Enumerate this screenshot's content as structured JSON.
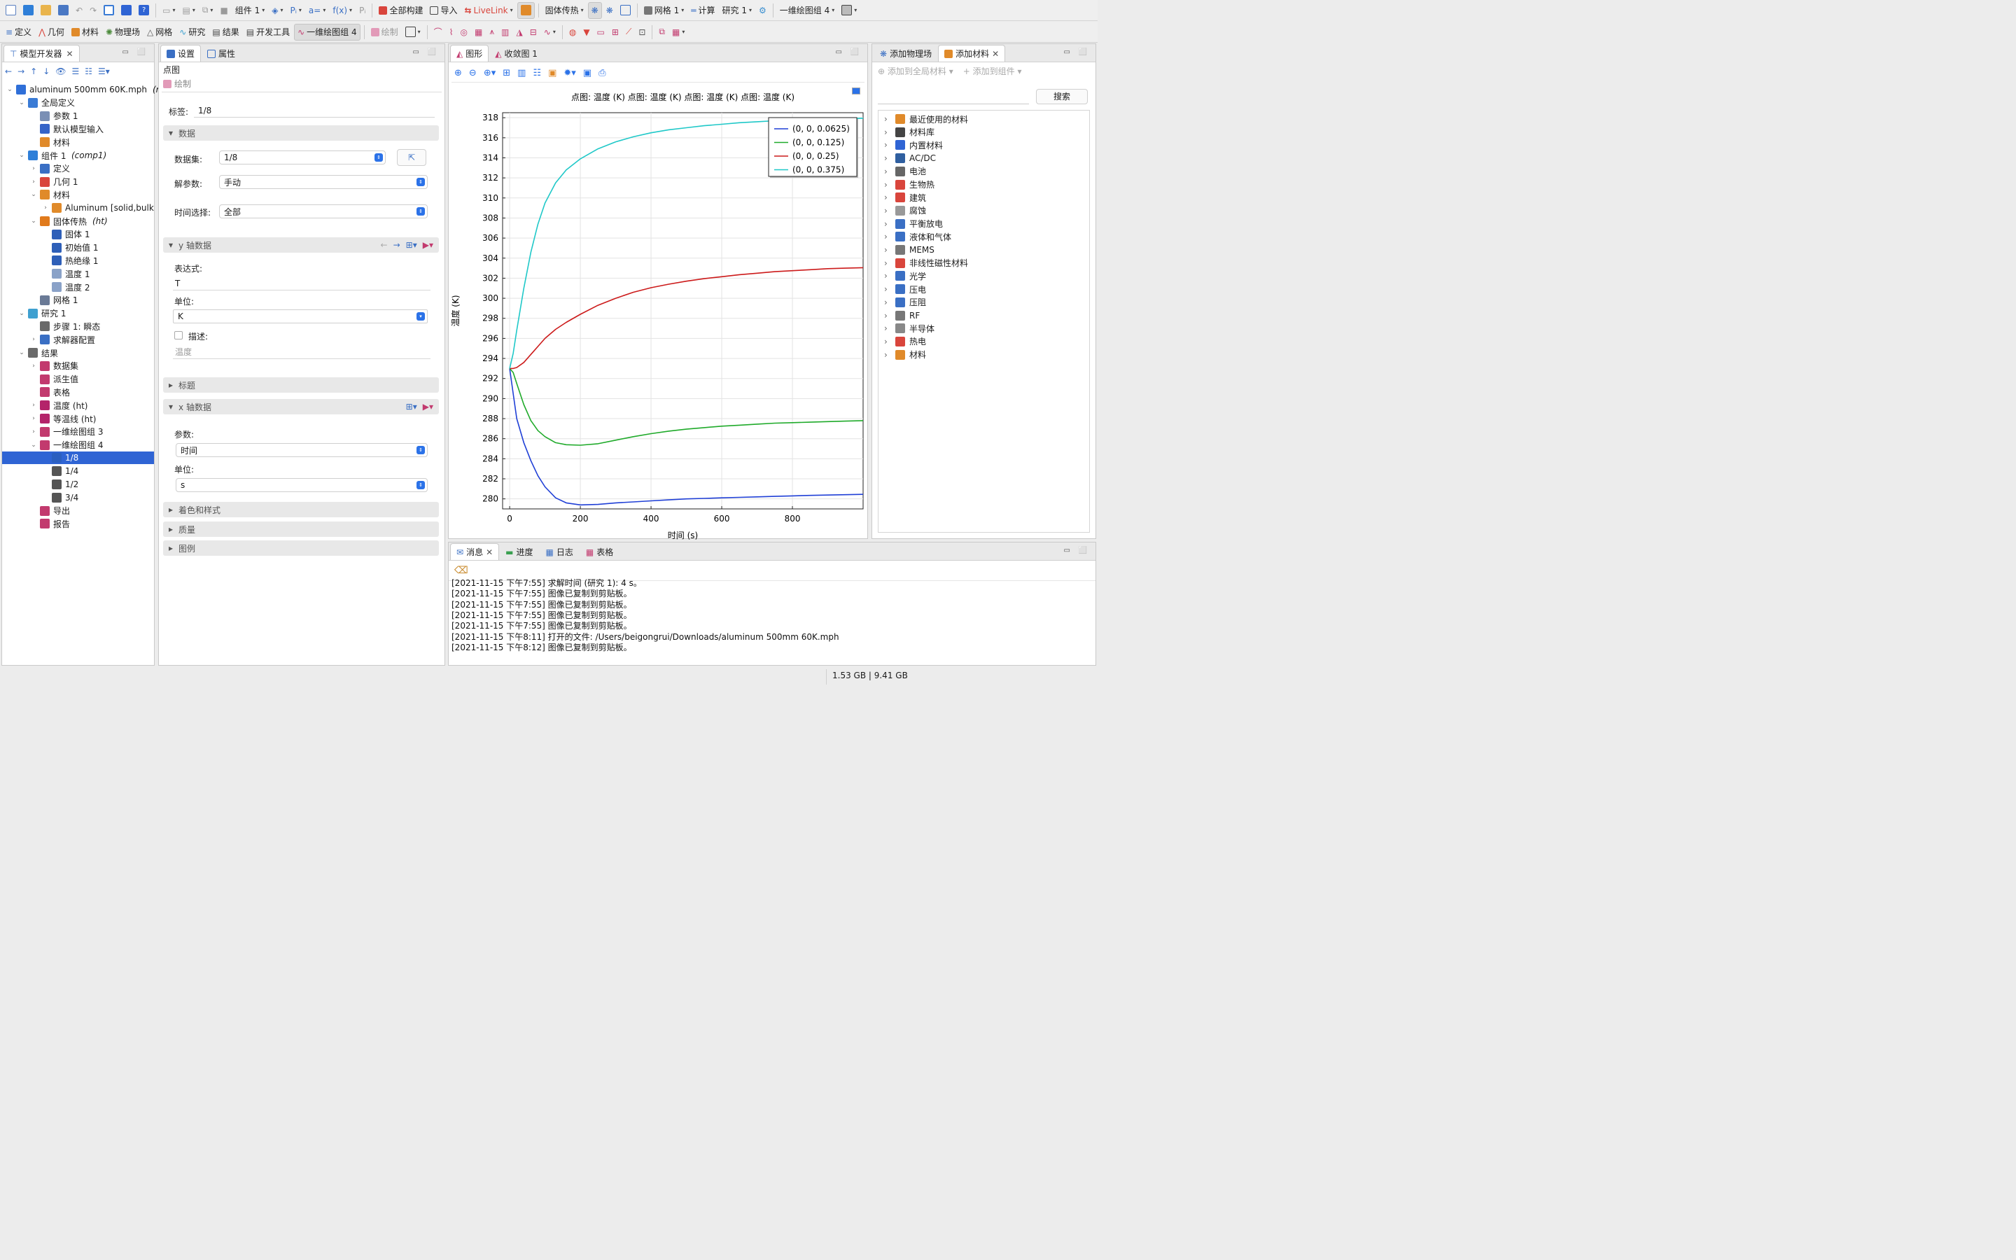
{
  "toolbar1": {
    "component": "组件 1",
    "build_all": "全部构建",
    "import": "导入",
    "livelink": "LiveLink",
    "physics": "固体传热",
    "mesh": "网格 1",
    "compute": "计算",
    "study": "研究 1",
    "plot_group": "一维绘图组 4"
  },
  "toolbar2": {
    "definitions": "定义",
    "geometry": "几何",
    "materials": "材料",
    "physics": "物理场",
    "mesh": "网格",
    "study": "研究",
    "results": "结果",
    "developer": "开发工具",
    "plot_group": "一维绘图组 4",
    "plot": "绘制"
  },
  "model_builder": {
    "title": "模型开发器",
    "tree": [
      {
        "label": "aluminum 500mm 60K.mph",
        "suffix": "(r",
        "level": 0,
        "exp": "v",
        "icon": "#2f6fd8"
      },
      {
        "label": "全局定义",
        "level": 1,
        "exp": "v",
        "icon": "#3a7bd5"
      },
      {
        "label": "参数 1",
        "level": 2,
        "icon": "#7a8fb5"
      },
      {
        "label": "默认模型输入",
        "level": 2,
        "icon": "#3564c8"
      },
      {
        "label": "材料",
        "level": 2,
        "icon": "#e08a2a"
      },
      {
        "label": "组件 1",
        "suffix": "(comp1)",
        "level": 1,
        "exp": "v",
        "icon": "#2f7fd8"
      },
      {
        "label": "定义",
        "level": 2,
        "exp": ">",
        "icon": "#3a6fc4"
      },
      {
        "label": "几何 1",
        "level": 2,
        "exp": ">",
        "icon": "#d9453c"
      },
      {
        "label": "材料",
        "level": 2,
        "exp": "v",
        "icon": "#e08a2a"
      },
      {
        "label": "Aluminum [solid,bulk",
        "level": 3,
        "exp": ">",
        "icon": "#e08a2a"
      },
      {
        "label": "固体传热",
        "suffix": "(ht)",
        "level": 2,
        "exp": "v",
        "icon": "#e07a1c"
      },
      {
        "label": "固体 1",
        "level": 3,
        "icon": "#2e5fb8"
      },
      {
        "label": "初始值 1",
        "level": 3,
        "icon": "#2e5fb8"
      },
      {
        "label": "热绝缘 1",
        "level": 3,
        "icon": "#2e5fb8"
      },
      {
        "label": "温度 1",
        "level": 3,
        "icon": "#8aa2c8"
      },
      {
        "label": "温度 2",
        "level": 3,
        "icon": "#8aa2c8"
      },
      {
        "label": "网格 1",
        "level": 2,
        "icon": "#6a7a96"
      },
      {
        "label": "研究 1",
        "level": 1,
        "exp": "v",
        "icon": "#3fa0d0"
      },
      {
        "label": "步骤 1: 瞬态",
        "level": 2,
        "icon": "#6a6a6a"
      },
      {
        "label": "求解器配置",
        "level": 2,
        "exp": ">",
        "icon": "#3a6fc4"
      },
      {
        "label": "结果",
        "level": 1,
        "exp": "v",
        "icon": "#6a6a6a"
      },
      {
        "label": "数据集",
        "level": 2,
        "exp": ">",
        "icon": "#c23a6e"
      },
      {
        "label": "派生值",
        "level": 2,
        "icon": "#c23a6e"
      },
      {
        "label": "表格",
        "level": 2,
        "icon": "#c23a6e"
      },
      {
        "label": "温度 (ht)",
        "level": 2,
        "exp": ">",
        "icon": "#b4246a"
      },
      {
        "label": "等温线 (ht)",
        "level": 2,
        "exp": ">",
        "icon": "#b4246a"
      },
      {
        "label": "一维绘图组 3",
        "level": 2,
        "exp": ">",
        "icon": "#c23a6e"
      },
      {
        "label": "一维绘图组 4",
        "level": 2,
        "exp": "v",
        "icon": "#c23a6e"
      },
      {
        "label": "1/8",
        "level": 3,
        "icon": "#2b5fc0",
        "selected": true
      },
      {
        "label": "1/4",
        "level": 3,
        "icon": "#555"
      },
      {
        "label": "1/2",
        "level": 3,
        "icon": "#555"
      },
      {
        "label": "3/4",
        "level": 3,
        "icon": "#555"
      },
      {
        "label": "导出",
        "level": 2,
        "icon": "#c23a6e"
      },
      {
        "label": "报告",
        "level": 2,
        "icon": "#c23a6e"
      }
    ]
  },
  "settings": {
    "tab_settings": "设置",
    "tab_properties": "属性",
    "node_type": "点图",
    "plot_label": "绘制",
    "label_key": "标签:",
    "label_value": "1/8",
    "sec_data": "数据",
    "dataset_key": "数据集:",
    "dataset_value": "1/8",
    "solparam_key": "解参数:",
    "solparam_value": "手动",
    "time_key": "时间选择:",
    "time_value": "全部",
    "sec_y": "y 轴数据",
    "expr_key": "表达式:",
    "expr_value": "T",
    "unit_key": "单位:",
    "unit_value": "K",
    "desc_key": "描述:",
    "desc_value": "温度",
    "sec_title": "标题",
    "sec_x": "x 轴数据",
    "param_key": "参数:",
    "param_value": "时间",
    "xunit_key": "单位:",
    "xunit_value": "s",
    "sec_color": "着色和样式",
    "sec_quality": "质量",
    "sec_legend": "图例"
  },
  "graphics": {
    "tab_graphics": "图形",
    "tab_convergence": "收敛图 1"
  },
  "chart_data": {
    "type": "line",
    "title": "点图: 温度 (K)  点图: 温度 (K)  点图: 温度 (K)  点图: 温度 (K)",
    "xlabel": "时间 (s)",
    "ylabel": "温度 (K)",
    "xlim": [
      -20,
      1000
    ],
    "ylim": [
      279,
      318.5
    ],
    "xticks": [
      0,
      200,
      400,
      600,
      800
    ],
    "yticks": [
      280,
      282,
      284,
      286,
      288,
      290,
      292,
      294,
      296,
      298,
      300,
      302,
      304,
      306,
      308,
      310,
      312,
      314,
      316,
      318
    ],
    "grid": true,
    "legend_position": "top-right",
    "x": [
      0,
      10,
      20,
      40,
      60,
      80,
      100,
      130,
      160,
      200,
      250,
      300,
      350,
      400,
      450,
      500,
      550,
      600,
      650,
      700,
      750,
      800,
      850,
      900,
      950,
      1000
    ],
    "series": [
      {
        "name": "(0, 0, 0.0625)",
        "color": "#1f3fd6",
        "values": [
          293,
          290.5,
          288,
          285.6,
          283.8,
          282.3,
          281.2,
          280.1,
          279.6,
          279.4,
          279.45,
          279.6,
          279.7,
          279.8,
          279.9,
          280.0,
          280.05,
          280.1,
          280.15,
          280.2,
          280.25,
          280.3,
          280.35,
          280.38,
          280.42,
          280.45
        ]
      },
      {
        "name": "(0, 0, 0.125)",
        "color": "#1faa2a",
        "values": [
          293,
          292.6,
          291.5,
          289.4,
          287.8,
          286.8,
          286.2,
          285.6,
          285.4,
          285.35,
          285.5,
          285.85,
          286.2,
          286.5,
          286.75,
          286.95,
          287.1,
          287.25,
          287.35,
          287.45,
          287.55,
          287.6,
          287.65,
          287.7,
          287.75,
          287.8
        ]
      },
      {
        "name": "(0, 0, 0.25)",
        "color": "#cc1a1a",
        "values": [
          293,
          293,
          293.1,
          293.6,
          294.4,
          295.2,
          296.0,
          296.9,
          297.6,
          298.4,
          299.3,
          300.0,
          300.6,
          301.05,
          301.4,
          301.7,
          301.95,
          302.15,
          302.35,
          302.5,
          302.65,
          302.75,
          302.85,
          302.95,
          303.0,
          303.05
        ]
      },
      {
        "name": "(0, 0, 0.375)",
        "color": "#1fc8c8",
        "values": [
          293,
          294.5,
          296.8,
          301.0,
          304.6,
          307.4,
          309.5,
          311.5,
          312.8,
          313.9,
          314.9,
          315.6,
          316.1,
          316.5,
          316.8,
          317.0,
          317.2,
          317.35,
          317.5,
          317.6,
          317.7,
          317.75,
          317.8,
          317.85,
          317.9,
          317.95
        ]
      }
    ]
  },
  "add_physics": {
    "tab_physics": "添加物理场",
    "tab_material": "添加材料",
    "add_global": "添加到全局材料",
    "add_component": "添加到组件",
    "search": "搜索",
    "items": [
      "最近使用的材料",
      "材料库",
      "内置材料",
      "AC/DC",
      "电池",
      "生物热",
      "建筑",
      "腐蚀",
      "平衡放电",
      "液体和气体",
      "MEMS",
      "非线性磁性材料",
      "光学",
      "压电",
      "压阻",
      "RF",
      "半导体",
      "热电",
      "材料"
    ]
  },
  "messages": {
    "tab_messages": "消息",
    "tab_progress": "进度",
    "tab_log": "日志",
    "tab_table": "表格",
    "lines": [
      "[2021-11-15 下午7:55] 求解时间 (研究 1): 4 s。",
      "[2021-11-15 下午7:55] 图像已复制到剪贴板。",
      "[2021-11-15 下午7:55] 图像已复制到剪贴板。",
      "[2021-11-15 下午7:55] 图像已复制到剪贴板。",
      "[2021-11-15 下午7:55] 图像已复制到剪贴板。",
      "[2021-11-15 下午8:11] 打开的文件: /Users/beigongrui/Downloads/aluminum 500mm 60K.mph",
      "[2021-11-15 下午8:12] 图像已复制到剪贴板。"
    ]
  },
  "status": {
    "memory": "1.53 GB | 9.41 GB"
  }
}
